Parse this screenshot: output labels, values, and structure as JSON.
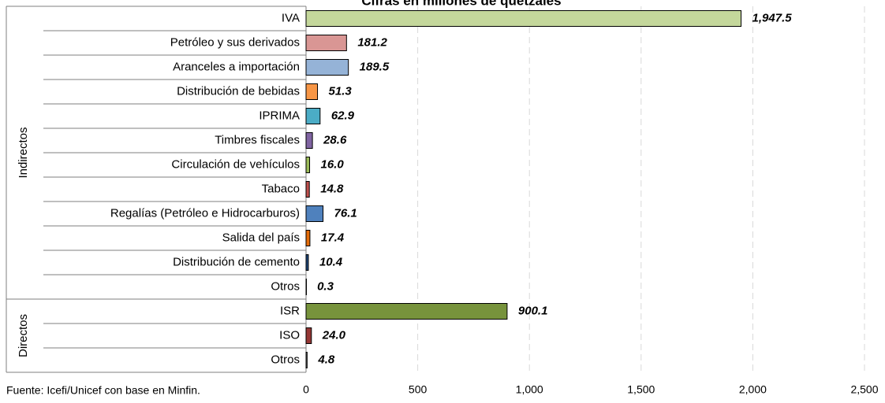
{
  "chart_data": {
    "type": "bar",
    "orientation": "horizontal",
    "title": "Cifras en millones de quetzales",
    "footnote": "Fuente: Icefi/Unicef con base en Minfin.",
    "xlim": [
      0,
      2500
    ],
    "xticks": [
      0,
      500,
      {
        "value": 1000,
        "label": "1,000"
      },
      {
        "value": 1500,
        "label": "1,500"
      },
      {
        "value": 2000,
        "label": "2,000"
      },
      {
        "value": 2500,
        "label": "2,500"
      }
    ],
    "grid": true,
    "groups": [
      {
        "name": "Indirectos",
        "categories": [
          "IVA",
          "Petróleo y sus derivados",
          "Aranceles a importación",
          "Distribución de bebidas",
          "IPRIMA",
          "Timbres fiscales",
          "Circulación de vehículos",
          "Tabaco",
          "Regalías (Petróleo e Hidrocarburos)",
          "Salida del país",
          "Distribución de cemento",
          "Otros"
        ],
        "values": [
          1947.5,
          181.2,
          189.5,
          51.3,
          62.9,
          28.6,
          16.0,
          14.8,
          76.1,
          17.4,
          10.4,
          0.3
        ],
        "value_labels": [
          "1,947.5",
          "181.2",
          "189.5",
          "51.3",
          "62.9",
          "28.6",
          "16.0",
          "14.8",
          "76.1",
          "17.4",
          "10.4",
          "0.3"
        ],
        "colors": [
          "#c4d79b",
          "#d99694",
          "#95b3d7",
          "#f79646",
          "#4bacc6",
          "#8064a2",
          "#9bbb59",
          "#c0504d",
          "#4f81bd",
          "#e46c0a",
          "#1f497d",
          "#a6a6a6"
        ]
      },
      {
        "name": "Directos",
        "categories": [
          "ISR",
          "ISO",
          "Otros"
        ],
        "values": [
          900.1,
          24.0,
          4.8
        ],
        "value_labels": [
          "900.1",
          "24.0",
          "4.8"
        ],
        "colors": [
          "#77933c",
          "#953735",
          "#7f7f7f"
        ]
      }
    ]
  }
}
